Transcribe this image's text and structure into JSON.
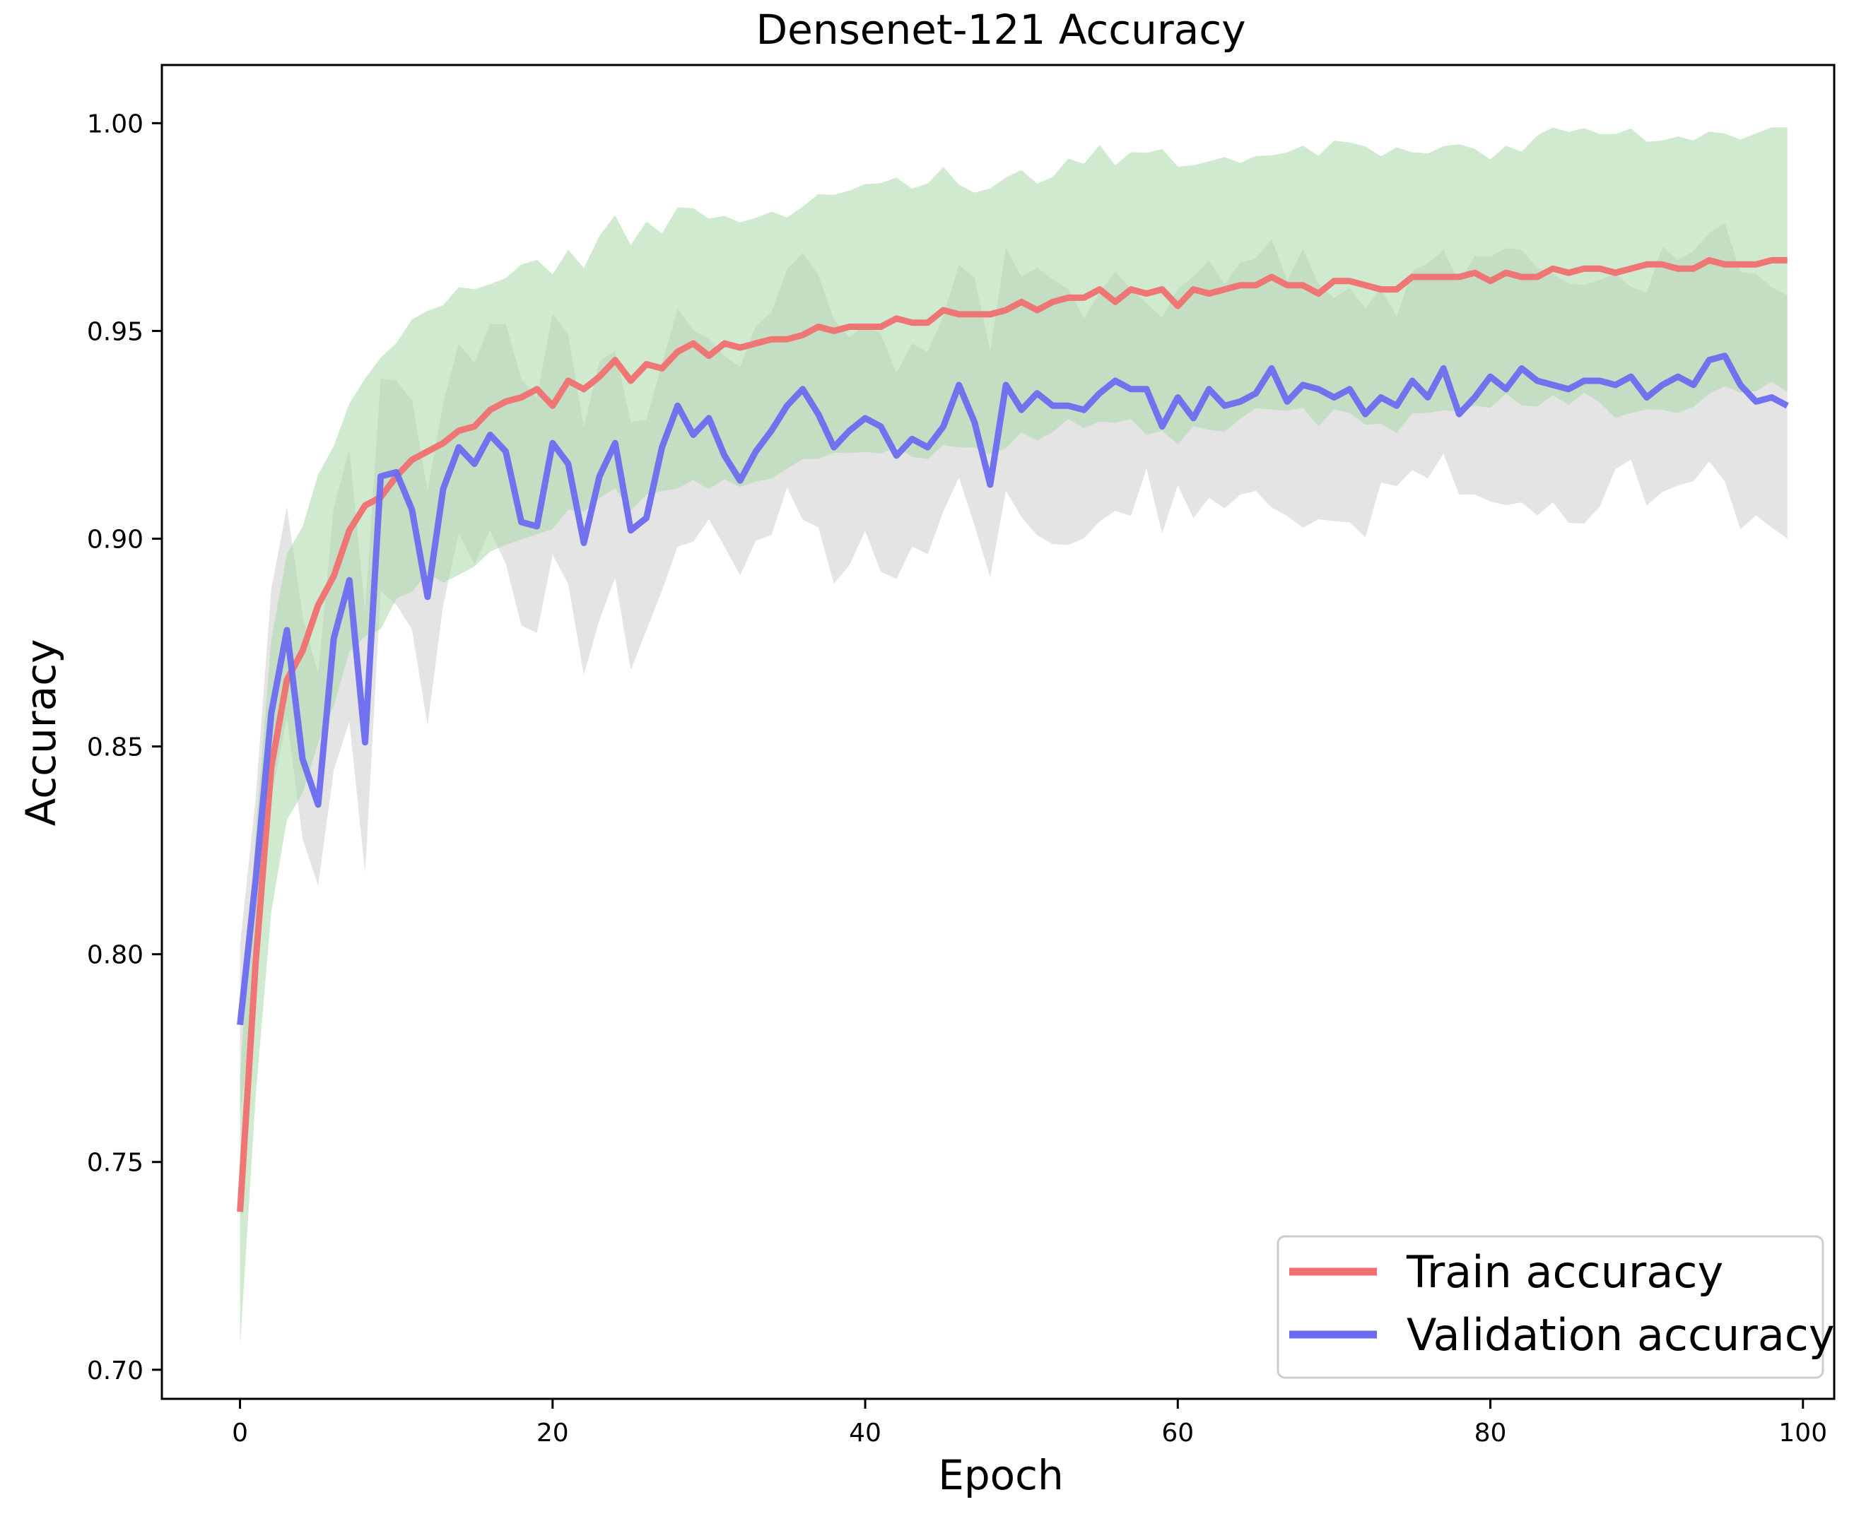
{
  "chart_data": {
    "type": "line",
    "title": "Densenet-121 Accuracy",
    "xlabel": "Epoch",
    "ylabel": "Accuracy",
    "xlim": [
      -5,
      102
    ],
    "ylim": [
      0.693,
      1.014
    ],
    "xticks": [
      0,
      20,
      40,
      60,
      80,
      100
    ],
    "xtick_labels": [
      "0",
      "20",
      "40",
      "60",
      "80",
      "100"
    ],
    "yticks": [
      0.7,
      0.75,
      0.8,
      0.85,
      0.9,
      0.95,
      1.0
    ],
    "ytick_labels": [
      "0.70",
      "0.75",
      "0.80",
      "0.85",
      "0.90",
      "0.95",
      "1.00"
    ],
    "legend_position": "lower-right",
    "series": [
      {
        "name": "Train accuracy",
        "color": "#f07070",
        "band_color": "#a8d8a8",
        "band_halfwidth": 0.032,
        "values": [
          0.738,
          0.798,
          0.845,
          0.866,
          0.873,
          0.884,
          0.891,
          0.902,
          0.908,
          0.91,
          0.915,
          0.919,
          0.921,
          0.923,
          0.926,
          0.927,
          0.931,
          0.933,
          0.934,
          0.936,
          0.932,
          0.938,
          0.936,
          0.939,
          0.943,
          0.938,
          0.942,
          0.941,
          0.945,
          0.947,
          0.944,
          0.947,
          0.946,
          0.947,
          0.948,
          0.948,
          0.949,
          0.951,
          0.95,
          0.951,
          0.951,
          0.951,
          0.953,
          0.952,
          0.952,
          0.955,
          0.954,
          0.954,
          0.954,
          0.955,
          0.957,
          0.955,
          0.957,
          0.958,
          0.958,
          0.96,
          0.957,
          0.96,
          0.959,
          0.96,
          0.956,
          0.96,
          0.959,
          0.96,
          0.961,
          0.961,
          0.963,
          0.961,
          0.961,
          0.959,
          0.962,
          0.962,
          0.961,
          0.96,
          0.96,
          0.963,
          0.963,
          0.963,
          0.963,
          0.964,
          0.962,
          0.964,
          0.963,
          0.963,
          0.965,
          0.964,
          0.965,
          0.965,
          0.964,
          0.965,
          0.966,
          0.966,
          0.965,
          0.965,
          0.967,
          0.966,
          0.966,
          0.966,
          0.967,
          0.967
        ]
      },
      {
        "name": "Validation accuracy",
        "color": "#6b6bf0",
        "band_color": "#b8b8b8",
        "band_halfwidth": 0.027,
        "values": [
          0.783,
          0.818,
          0.858,
          0.878,
          0.847,
          0.836,
          0.876,
          0.89,
          0.851,
          0.915,
          0.916,
          0.907,
          0.886,
          0.912,
          0.922,
          0.918,
          0.925,
          0.921,
          0.904,
          0.903,
          0.923,
          0.918,
          0.899,
          0.915,
          0.923,
          0.902,
          0.905,
          0.922,
          0.932,
          0.925,
          0.929,
          0.92,
          0.914,
          0.921,
          0.926,
          0.932,
          0.936,
          0.93,
          0.922,
          0.926,
          0.929,
          0.927,
          0.92,
          0.924,
          0.922,
          0.927,
          0.937,
          0.928,
          0.913,
          0.937,
          0.931,
          0.935,
          0.932,
          0.932,
          0.931,
          0.935,
          0.938,
          0.936,
          0.936,
          0.927,
          0.934,
          0.929,
          0.936,
          0.932,
          0.933,
          0.935,
          0.941,
          0.933,
          0.937,
          0.936,
          0.934,
          0.936,
          0.93,
          0.934,
          0.932,
          0.938,
          0.934,
          0.941,
          0.93,
          0.934,
          0.939,
          0.936,
          0.941,
          0.938,
          0.937,
          0.936,
          0.938,
          0.938,
          0.937,
          0.939,
          0.934,
          0.937,
          0.939,
          0.937,
          0.943,
          0.944,
          0.937,
          0.933,
          0.934,
          0.932
        ]
      }
    ]
  }
}
